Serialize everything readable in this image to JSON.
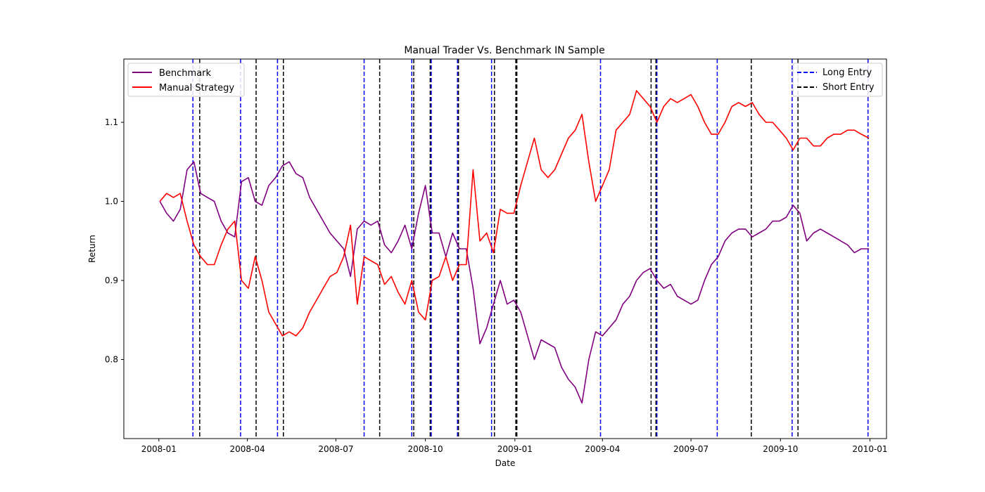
{
  "chart_data": {
    "type": "line",
    "title": "Manual Trader Vs. Benchmark IN Sample",
    "xlabel": "Date",
    "ylabel": "Return",
    "xlim": [
      "2007-11-26",
      "2010-01-18"
    ],
    "ylim": [
      0.7,
      1.18
    ],
    "x_ticks": [
      "2008-01",
      "2008-04",
      "2008-07",
      "2008-10",
      "2009-01",
      "2009-04",
      "2009-07",
      "2009-10",
      "2010-01"
    ],
    "y_ticks": [
      0.8,
      0.9,
      1.0,
      1.1
    ],
    "grid": false,
    "legends": [
      {
        "placement": "upper-left",
        "entries": [
          "Benchmark",
          "Manual Strategy"
        ]
      },
      {
        "placement": "upper-right",
        "entries": [
          "Long Entry",
          "Short Entry"
        ]
      }
    ],
    "series": [
      {
        "name": "Benchmark",
        "color": "#800080",
        "points": [
          [
            "2008-01-02",
            1.0
          ],
          [
            "2008-01-09",
            0.985
          ],
          [
            "2008-01-16",
            0.975
          ],
          [
            "2008-01-23",
            0.99
          ],
          [
            "2008-01-30",
            1.04
          ],
          [
            "2008-02-06",
            1.05
          ],
          [
            "2008-02-13",
            1.01
          ],
          [
            "2008-02-20",
            1.005
          ],
          [
            "2008-02-27",
            1.0
          ],
          [
            "2008-03-05",
            0.975
          ],
          [
            "2008-03-12",
            0.96
          ],
          [
            "2008-03-19",
            0.955
          ],
          [
            "2008-03-26",
            1.025
          ],
          [
            "2008-04-02",
            1.03
          ],
          [
            "2008-04-09",
            1.0
          ],
          [
            "2008-04-16",
            0.995
          ],
          [
            "2008-04-23",
            1.02
          ],
          [
            "2008-04-30",
            1.03
          ],
          [
            "2008-05-07",
            1.045
          ],
          [
            "2008-05-14",
            1.05
          ],
          [
            "2008-05-21",
            1.035
          ],
          [
            "2008-05-28",
            1.03
          ],
          [
            "2008-06-04",
            1.005
          ],
          [
            "2008-06-11",
            0.99
          ],
          [
            "2008-06-18",
            0.975
          ],
          [
            "2008-06-25",
            0.96
          ],
          [
            "2008-07-02",
            0.95
          ],
          [
            "2008-07-09",
            0.94
          ],
          [
            "2008-07-16",
            0.905
          ],
          [
            "2008-07-23",
            0.965
          ],
          [
            "2008-07-30",
            0.975
          ],
          [
            "2008-08-06",
            0.97
          ],
          [
            "2008-08-13",
            0.975
          ],
          [
            "2008-08-20",
            0.945
          ],
          [
            "2008-08-27",
            0.935
          ],
          [
            "2008-09-03",
            0.95
          ],
          [
            "2008-09-10",
            0.97
          ],
          [
            "2008-09-17",
            0.94
          ],
          [
            "2008-09-24",
            0.985
          ],
          [
            "2008-10-01",
            1.02
          ],
          [
            "2008-10-08",
            0.96
          ],
          [
            "2008-10-15",
            0.96
          ],
          [
            "2008-10-22",
            0.93
          ],
          [
            "2008-10-29",
            0.96
          ],
          [
            "2008-11-05",
            0.94
          ],
          [
            "2008-11-12",
            0.94
          ],
          [
            "2008-11-19",
            0.89
          ],
          [
            "2008-11-26",
            0.82
          ],
          [
            "2008-12-03",
            0.84
          ],
          [
            "2008-12-10",
            0.87
          ],
          [
            "2008-12-17",
            0.9
          ],
          [
            "2008-12-24",
            0.87
          ],
          [
            "2008-12-31",
            0.875
          ],
          [
            "2009-01-07",
            0.86
          ],
          [
            "2009-01-14",
            0.83
          ],
          [
            "2009-01-21",
            0.8
          ],
          [
            "2009-01-28",
            0.825
          ],
          [
            "2009-02-04",
            0.82
          ],
          [
            "2009-02-11",
            0.815
          ],
          [
            "2009-02-18",
            0.79
          ],
          [
            "2009-02-25",
            0.775
          ],
          [
            "2009-03-04",
            0.765
          ],
          [
            "2009-03-11",
            0.745
          ],
          [
            "2009-03-18",
            0.8
          ],
          [
            "2009-03-25",
            0.835
          ],
          [
            "2009-04-01",
            0.83
          ],
          [
            "2009-04-08",
            0.84
          ],
          [
            "2009-04-15",
            0.85
          ],
          [
            "2009-04-22",
            0.87
          ],
          [
            "2009-04-29",
            0.88
          ],
          [
            "2009-05-06",
            0.9
          ],
          [
            "2009-05-13",
            0.91
          ],
          [
            "2009-05-20",
            0.915
          ],
          [
            "2009-05-27",
            0.9
          ],
          [
            "2009-06-03",
            0.89
          ],
          [
            "2009-06-10",
            0.895
          ],
          [
            "2009-06-17",
            0.88
          ],
          [
            "2009-06-24",
            0.875
          ],
          [
            "2009-07-01",
            0.87
          ],
          [
            "2009-07-08",
            0.875
          ],
          [
            "2009-07-15",
            0.9
          ],
          [
            "2009-07-22",
            0.92
          ],
          [
            "2009-07-29",
            0.93
          ],
          [
            "2009-08-05",
            0.95
          ],
          [
            "2009-08-12",
            0.96
          ],
          [
            "2009-08-19",
            0.965
          ],
          [
            "2009-08-26",
            0.965
          ],
          [
            "2009-09-02",
            0.955
          ],
          [
            "2009-09-09",
            0.96
          ],
          [
            "2009-09-16",
            0.965
          ],
          [
            "2009-09-23",
            0.975
          ],
          [
            "2009-09-30",
            0.975
          ],
          [
            "2009-10-07",
            0.98
          ],
          [
            "2009-10-14",
            0.995
          ],
          [
            "2009-10-21",
            0.985
          ],
          [
            "2009-10-28",
            0.95
          ],
          [
            "2009-11-04",
            0.96
          ],
          [
            "2009-11-11",
            0.965
          ],
          [
            "2009-11-18",
            0.96
          ],
          [
            "2009-11-25",
            0.955
          ],
          [
            "2009-12-02",
            0.95
          ],
          [
            "2009-12-09",
            0.945
          ],
          [
            "2009-12-16",
            0.935
          ],
          [
            "2009-12-23",
            0.94
          ],
          [
            "2009-12-31",
            0.94
          ]
        ]
      },
      {
        "name": "Manual Strategy",
        "color": "#ff0000",
        "points": [
          [
            "2008-01-02",
            1.0
          ],
          [
            "2008-01-09",
            1.01
          ],
          [
            "2008-01-16",
            1.005
          ],
          [
            "2008-01-23",
            1.01
          ],
          [
            "2008-01-30",
            0.975
          ],
          [
            "2008-02-06",
            0.945
          ],
          [
            "2008-02-13",
            0.93
          ],
          [
            "2008-02-20",
            0.92
          ],
          [
            "2008-02-27",
            0.92
          ],
          [
            "2008-03-05",
            0.945
          ],
          [
            "2008-03-12",
            0.965
          ],
          [
            "2008-03-19",
            0.975
          ],
          [
            "2008-03-26",
            0.9
          ],
          [
            "2008-04-02",
            0.89
          ],
          [
            "2008-04-09",
            0.93
          ],
          [
            "2008-04-16",
            0.9
          ],
          [
            "2008-04-23",
            0.86
          ],
          [
            "2008-04-30",
            0.845
          ],
          [
            "2008-05-07",
            0.83
          ],
          [
            "2008-05-14",
            0.835
          ],
          [
            "2008-05-21",
            0.83
          ],
          [
            "2008-05-28",
            0.84
          ],
          [
            "2008-06-04",
            0.86
          ],
          [
            "2008-06-11",
            0.875
          ],
          [
            "2008-06-18",
            0.89
          ],
          [
            "2008-06-25",
            0.905
          ],
          [
            "2008-07-02",
            0.91
          ],
          [
            "2008-07-09",
            0.93
          ],
          [
            "2008-07-16",
            0.97
          ],
          [
            "2008-07-23",
            0.87
          ],
          [
            "2008-07-30",
            0.93
          ],
          [
            "2008-08-06",
            0.925
          ],
          [
            "2008-08-13",
            0.92
          ],
          [
            "2008-08-20",
            0.895
          ],
          [
            "2008-08-27",
            0.905
          ],
          [
            "2008-09-03",
            0.885
          ],
          [
            "2008-09-10",
            0.87
          ],
          [
            "2008-09-17",
            0.9
          ],
          [
            "2008-09-24",
            0.86
          ],
          [
            "2008-10-01",
            0.85
          ],
          [
            "2008-10-08",
            0.9
          ],
          [
            "2008-10-15",
            0.905
          ],
          [
            "2008-10-22",
            0.93
          ],
          [
            "2008-10-29",
            0.9
          ],
          [
            "2008-11-05",
            0.92
          ],
          [
            "2008-11-12",
            0.92
          ],
          [
            "2008-11-19",
            1.04
          ],
          [
            "2008-11-26",
            0.95
          ],
          [
            "2008-12-03",
            0.96
          ],
          [
            "2008-12-10",
            0.935
          ],
          [
            "2008-12-17",
            0.99
          ],
          [
            "2008-12-24",
            0.985
          ],
          [
            "2008-12-31",
            0.985
          ],
          [
            "2009-01-07",
            1.02
          ],
          [
            "2009-01-14",
            1.05
          ],
          [
            "2009-01-21",
            1.08
          ],
          [
            "2009-01-28",
            1.04
          ],
          [
            "2009-02-04",
            1.03
          ],
          [
            "2009-02-11",
            1.04
          ],
          [
            "2009-02-18",
            1.06
          ],
          [
            "2009-02-25",
            1.08
          ],
          [
            "2009-03-04",
            1.09
          ],
          [
            "2009-03-11",
            1.11
          ],
          [
            "2009-03-18",
            1.05
          ],
          [
            "2009-03-25",
            1.0
          ],
          [
            "2009-04-01",
            1.02
          ],
          [
            "2009-04-08",
            1.04
          ],
          [
            "2009-04-15",
            1.09
          ],
          [
            "2009-04-22",
            1.1
          ],
          [
            "2009-04-29",
            1.11
          ],
          [
            "2009-05-06",
            1.14
          ],
          [
            "2009-05-13",
            1.13
          ],
          [
            "2009-05-20",
            1.12
          ],
          [
            "2009-05-27",
            1.1
          ],
          [
            "2009-06-03",
            1.12
          ],
          [
            "2009-06-10",
            1.13
          ],
          [
            "2009-06-17",
            1.125
          ],
          [
            "2009-06-24",
            1.13
          ],
          [
            "2009-07-01",
            1.135
          ],
          [
            "2009-07-08",
            1.12
          ],
          [
            "2009-07-15",
            1.1
          ],
          [
            "2009-07-22",
            1.085
          ],
          [
            "2009-07-29",
            1.085
          ],
          [
            "2009-08-05",
            1.1
          ],
          [
            "2009-08-12",
            1.12
          ],
          [
            "2009-08-19",
            1.125
          ],
          [
            "2009-08-26",
            1.12
          ],
          [
            "2009-09-02",
            1.125
          ],
          [
            "2009-09-09",
            1.11
          ],
          [
            "2009-09-16",
            1.1
          ],
          [
            "2009-09-23",
            1.1
          ],
          [
            "2009-09-30",
            1.09
          ],
          [
            "2009-10-07",
            1.08
          ],
          [
            "2009-10-14",
            1.065
          ],
          [
            "2009-10-21",
            1.08
          ],
          [
            "2009-10-28",
            1.08
          ],
          [
            "2009-11-04",
            1.07
          ],
          [
            "2009-11-11",
            1.07
          ],
          [
            "2009-11-18",
            1.08
          ],
          [
            "2009-11-25",
            1.085
          ],
          [
            "2009-12-02",
            1.085
          ],
          [
            "2009-12-09",
            1.09
          ],
          [
            "2009-12-16",
            1.09
          ],
          [
            "2009-12-23",
            1.085
          ],
          [
            "2009-12-31",
            1.08
          ]
        ]
      }
    ],
    "vlines": {
      "long_entry": {
        "name": "Long Entry",
        "color": "#0000ff",
        "dates": [
          "2008-02-05",
          "2008-03-25",
          "2008-05-02",
          "2008-07-30",
          "2008-09-17",
          "2008-10-06",
          "2008-10-07",
          "2008-11-03",
          "2008-12-08",
          "2009-01-02",
          "2009-03-30",
          "2009-05-27",
          "2009-07-28",
          "2009-10-13",
          "2009-12-30"
        ]
      },
      "short_entry": {
        "name": "Short Entry",
        "color": "#000000",
        "dates": [
          "2008-02-12",
          "2008-04-10",
          "2008-05-08",
          "2008-08-15",
          "2008-09-19",
          "2008-10-06",
          "2008-11-04",
          "2008-12-11",
          "2009-01-02",
          "2009-01-03",
          "2009-05-21",
          "2009-05-26",
          "2009-09-01",
          "2009-10-19"
        ]
      }
    }
  }
}
